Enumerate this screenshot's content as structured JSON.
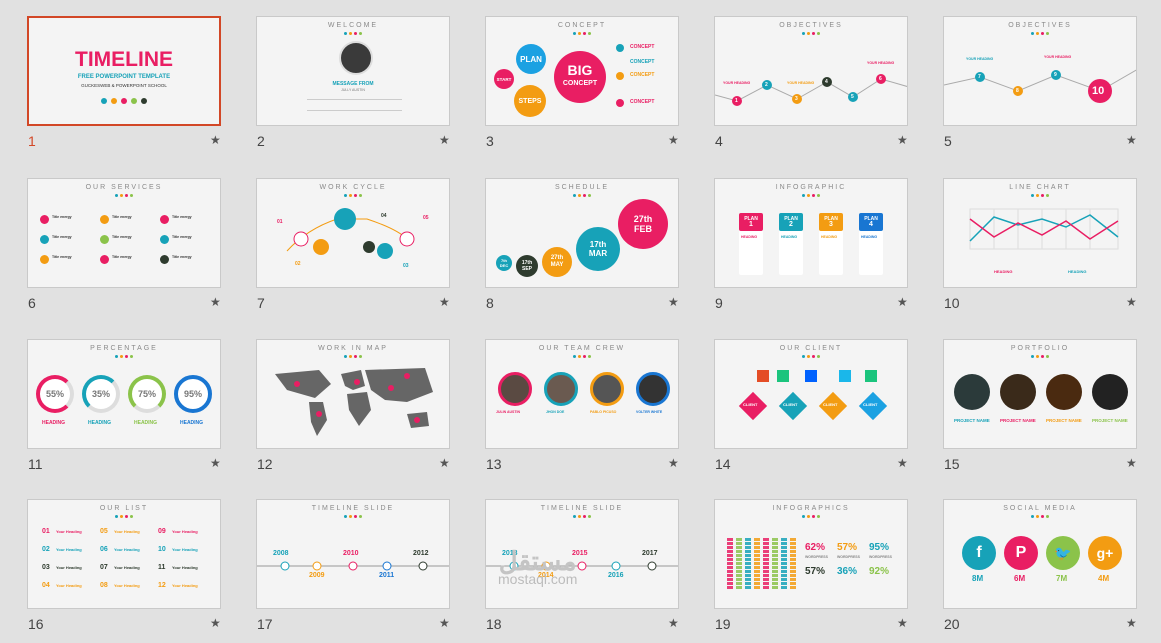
{
  "slides": [
    {
      "number": "1",
      "title": "TIMELINE",
      "subtitle": "FREE POWERPOINT TEMPLATE",
      "byline": "GUCKESWEB & POWERPOINT SCHOOL"
    },
    {
      "number": "2",
      "title": "WELCOME",
      "name_heading": "MESSAGE FROM",
      "name": "JULLY AUSTIN"
    },
    {
      "number": "3",
      "title": "CONCEPT",
      "plan": "PLAN",
      "big": "BIG",
      "concept": "CONCEPT",
      "start": "START",
      "steps": "STEPS",
      "side_labels": [
        "CONCEPT",
        "CONCEPT",
        "CONCEPT",
        "CONCEPT"
      ]
    },
    {
      "number": "4",
      "title": "OBJECTIVES",
      "points": [
        "1",
        "2",
        "3",
        "4",
        "5",
        "6"
      ],
      "heading": "YOUR HEADING"
    },
    {
      "number": "5",
      "title": "OBJECTIVES",
      "points": [
        "7",
        "8",
        "9",
        "10"
      ],
      "heading": "YOUR HEADING"
    },
    {
      "number": "6",
      "title": "OUR SERVICES",
      "item": "Title energy"
    },
    {
      "number": "7",
      "title": "WORK CYCLE",
      "labels": [
        "01",
        "02",
        "03",
        "04",
        "05"
      ]
    },
    {
      "number": "8",
      "title": "SCHEDULE",
      "dates": [
        {
          "d": "27th",
          "m": "FEB"
        },
        {
          "d": "17th",
          "m": "MAR"
        },
        {
          "d": "27th",
          "m": "MAY"
        },
        {
          "d": "17th",
          "m": "SEP"
        },
        {
          "d": "7th",
          "m": "DEC"
        }
      ]
    },
    {
      "number": "9",
      "title": "INFOGRAPHIC",
      "plans": [
        {
          "label": "PLAN",
          "n": "1"
        },
        {
          "label": "PLAN",
          "n": "2"
        },
        {
          "label": "PLAN",
          "n": "3"
        },
        {
          "label": "PLAN",
          "n": "4"
        }
      ],
      "heading": "HEADING"
    },
    {
      "number": "10",
      "title": "LINE CHART",
      "heading": "HEADING"
    },
    {
      "number": "11",
      "title": "PERCENTAGE",
      "values": [
        "55%",
        "35%",
        "75%",
        "95%"
      ],
      "heading": "HEADING"
    },
    {
      "number": "12",
      "title": "WORK IN MAP"
    },
    {
      "number": "13",
      "title": "OUR TEAM CREW",
      "members": [
        "JULIN AUSTIN",
        "JHON DOE",
        "PABLO PICUSO",
        "VOLTER WHITE"
      ]
    },
    {
      "number": "14",
      "title": "OUR CLIENT",
      "client": "CLIENT"
    },
    {
      "number": "15",
      "title": "PORTFOLIO",
      "project": "PROJECT NAME"
    },
    {
      "number": "16",
      "title": "OUR LIST",
      "rows": [
        [
          "01",
          "05",
          "09"
        ],
        [
          "02",
          "06",
          "10"
        ],
        [
          "03",
          "07",
          "11"
        ],
        [
          "04",
          "08",
          "12"
        ]
      ],
      "heading": "Your Heading"
    },
    {
      "number": "17",
      "title": "TIMELINE SLIDE",
      "years": [
        "2008",
        "2009",
        "2010",
        "2011",
        "2012"
      ]
    },
    {
      "number": "18",
      "title": "TIMELINE SLIDE",
      "years": [
        "2013",
        "2014",
        "2015",
        "2016",
        "2017"
      ]
    },
    {
      "number": "19",
      "title": "INFOGRAPHICS",
      "stats": [
        "62%",
        "57%",
        "95%",
        "57%",
        "36%",
        "92%"
      ],
      "stat_label": "WORDPRESS"
    },
    {
      "number": "20",
      "title": "SOCIAL MEDIA",
      "counts": [
        "8M",
        "6M",
        "7M",
        "4M"
      ],
      "icons": [
        "f",
        "P",
        "twitter",
        "g+"
      ]
    }
  ],
  "colors": {
    "pink": "#e91e63",
    "cyan": "#17a2b8",
    "orange": "#f39c12",
    "green": "#8bc34a",
    "dark": "#2e3b2e",
    "blue": "#1976d2",
    "selected": "#d24726"
  },
  "watermark": {
    "arabic": "مستقل",
    "latin": "mostaql.com"
  }
}
